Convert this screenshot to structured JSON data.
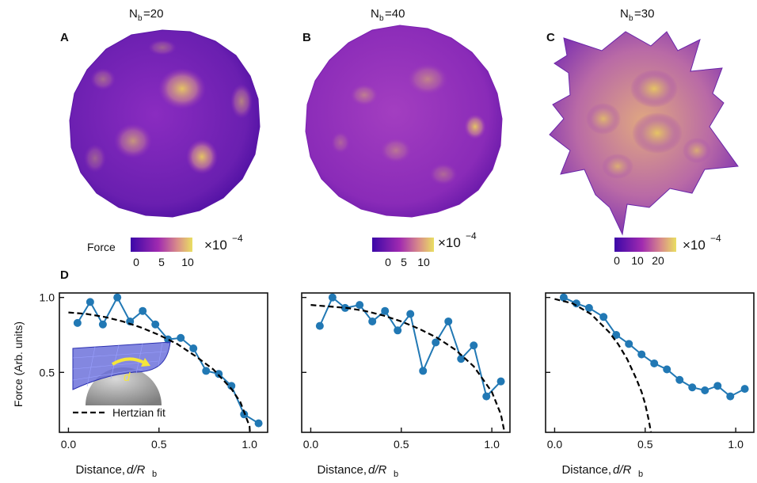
{
  "panels_top": [
    {
      "letter": "A",
      "title_main": "N",
      "title_sub": "b",
      "title_rest": "=20",
      "colorbar": {
        "label": "Force",
        "ticks": [
          "0",
          "5",
          "10"
        ],
        "exponent_base": "×10",
        "exponent_power": "−4"
      }
    },
    {
      "letter": "B",
      "title_main": "N",
      "title_sub": "b",
      "title_rest": "=40",
      "colorbar": {
        "label": "",
        "ticks": [
          "0",
          "5",
          "10"
        ],
        "exponent_base": "×10",
        "exponent_power": "−4"
      }
    },
    {
      "letter": "C",
      "title_main": "N",
      "title_sub": "b",
      "title_rest": "=30",
      "colorbar": {
        "label": "",
        "ticks": [
          "0",
          "10",
          "20"
        ],
        "exponent_base": "×10",
        "exponent_power": "−4"
      }
    }
  ],
  "row_d": {
    "letter": "D",
    "ylabel": "Force (Arb. units)",
    "xlabel_text": "Distance, ",
    "xlabel_var": "d/R",
    "xlabel_sub": "b",
    "legend_label": "Hertzian fit",
    "inset_label": "d",
    "colors": {
      "data": "#2178b4",
      "fit": "#000000",
      "sphere_mesh": "#3a3fc4",
      "arrow": "#f5e63a"
    }
  },
  "chart_data": [
    {
      "type": "line",
      "xlim": [
        -0.05,
        1.1
      ],
      "ylim": [
        0.1,
        1.03
      ],
      "xticks": [
        "0.0",
        "0.5",
        "1.0"
      ],
      "yticks": [
        "0.5",
        "1.0"
      ],
      "series": [
        {
          "x": [
            0.05,
            0.12,
            0.19,
            0.27,
            0.34,
            0.41,
            0.48,
            0.55,
            0.62,
            0.69,
            0.76,
            0.83,
            0.9,
            0.97,
            1.05
          ],
          "y": [
            0.83,
            0.97,
            0.82,
            1.0,
            0.84,
            0.91,
            0.82,
            0.72,
            0.73,
            0.66,
            0.51,
            0.49,
            0.41,
            0.22,
            0.16
          ]
        },
        {
          "type": "fit",
          "x": [
            0.0,
            0.1,
            0.2,
            0.3,
            0.4,
            0.5,
            0.6,
            0.7,
            0.8,
            0.9,
            0.95,
            1.0,
            1.005
          ],
          "y": [
            0.9,
            0.89,
            0.87,
            0.84,
            0.8,
            0.75,
            0.69,
            0.61,
            0.52,
            0.39,
            0.3,
            0.14,
            0.05
          ]
        }
      ]
    },
    {
      "type": "line",
      "xlim": [
        -0.05,
        1.1
      ],
      "ylim": [
        0.1,
        1.03
      ],
      "xticks": [
        "0.0",
        "0.5",
        "1.0"
      ],
      "yticks": [
        "",
        ""
      ],
      "series": [
        {
          "x": [
            0.05,
            0.12,
            0.19,
            0.27,
            0.34,
            0.41,
            0.48,
            0.55,
            0.62,
            0.69,
            0.76,
            0.83,
            0.9,
            0.97,
            1.05
          ],
          "y": [
            0.81,
            1.0,
            0.93,
            0.95,
            0.84,
            0.91,
            0.78,
            0.89,
            0.51,
            0.7,
            0.84,
            0.59,
            0.68,
            0.34,
            0.44
          ]
        },
        {
          "type": "fit",
          "x": [
            0.0,
            0.1,
            0.2,
            0.3,
            0.4,
            0.5,
            0.6,
            0.7,
            0.8,
            0.9,
            1.0,
            1.05,
            1.07
          ],
          "y": [
            0.95,
            0.94,
            0.93,
            0.91,
            0.88,
            0.84,
            0.79,
            0.73,
            0.65,
            0.54,
            0.37,
            0.22,
            0.1
          ]
        }
      ]
    },
    {
      "type": "line",
      "xlim": [
        -0.05,
        1.1
      ],
      "ylim": [
        0.1,
        1.03
      ],
      "xticks": [
        "0.0",
        "0.5",
        "1.0"
      ],
      "yticks": [
        "",
        ""
      ],
      "series": [
        {
          "x": [
            0.05,
            0.12,
            0.19,
            0.27,
            0.34,
            0.41,
            0.48,
            0.55,
            0.62,
            0.69,
            0.76,
            0.83,
            0.9,
            0.97,
            1.05
          ],
          "y": [
            1.0,
            0.96,
            0.93,
            0.87,
            0.75,
            0.69,
            0.62,
            0.56,
            0.52,
            0.45,
            0.4,
            0.38,
            0.41,
            0.34,
            0.39
          ]
        },
        {
          "type": "fit",
          "x": [
            0.0,
            0.1,
            0.2,
            0.3,
            0.35,
            0.4,
            0.45,
            0.48,
            0.5,
            0.52,
            0.535
          ],
          "y": [
            0.99,
            0.96,
            0.89,
            0.77,
            0.69,
            0.59,
            0.46,
            0.37,
            0.29,
            0.18,
            0.08
          ]
        }
      ]
    }
  ]
}
